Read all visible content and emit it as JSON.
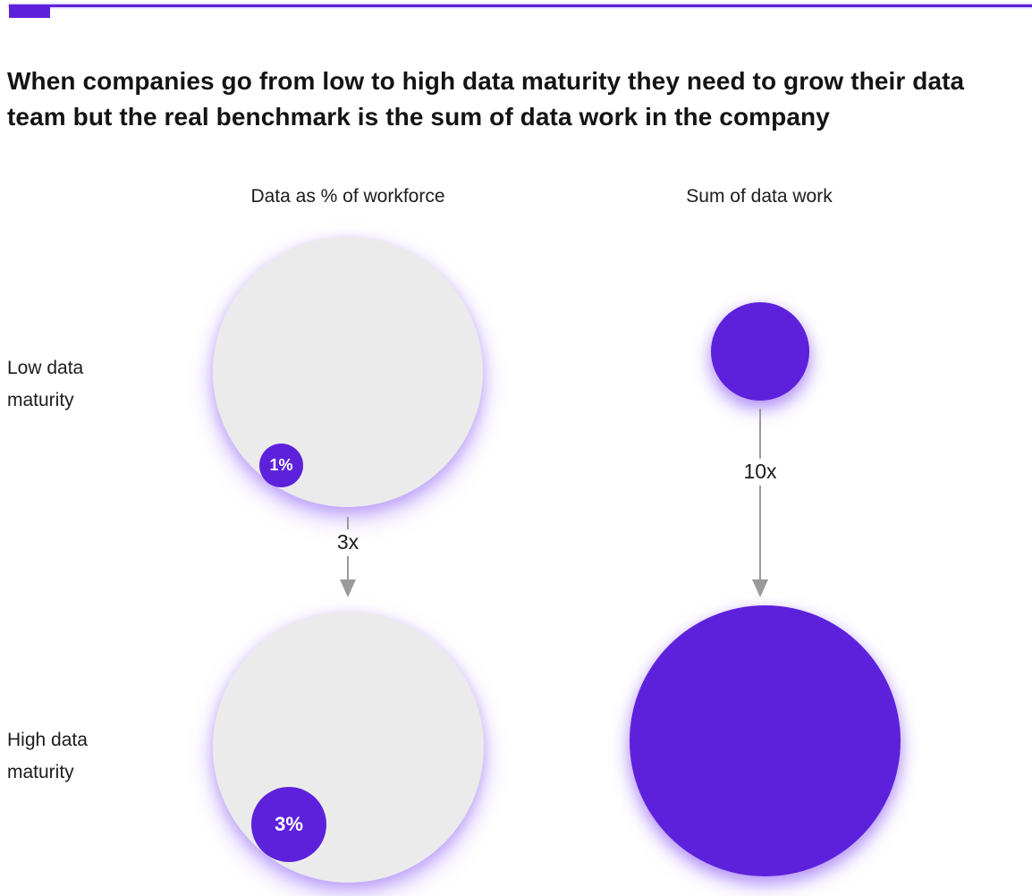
{
  "slide": {
    "title": "When companies go from low to high data maturity they need to grow their data team but the real benchmark is the sum of data work in the company",
    "accent_color": "#5d21db",
    "gray_circle_color": "#ebebeb",
    "glow_color": "rgba(151,103,247,0.45)",
    "arrow_color": "#9a9a9a",
    "background": "#ffffff"
  },
  "columns": [
    {
      "header": "Data as % of workforce"
    },
    {
      "header": "Sum of data work"
    }
  ],
  "rows": [
    {
      "label": "Low data maturity"
    },
    {
      "label": "High data maturity"
    }
  ],
  "workforce": {
    "low_share_label": "1%",
    "high_share_label": "3%",
    "growth_label": "3x"
  },
  "datawork": {
    "growth_label": "10x"
  },
  "chart_data": {
    "type": "bubble",
    "title": "When companies go from low to high data maturity they need to grow their data team but the real benchmark is the sum of data work in the company",
    "columns": [
      "Data as % of workforce",
      "Sum of data work"
    ],
    "rows": [
      "Low data maturity",
      "High data maturity"
    ],
    "series": [
      {
        "name": "Data as % of workforce",
        "points": [
          {
            "row": "Low data maturity",
            "data_share_pct": 1,
            "label": "1%",
            "outer_bubble": "total workforce"
          },
          {
            "row": "High data maturity",
            "data_share_pct": 3,
            "label": "3%",
            "outer_bubble": "total workforce"
          }
        ],
        "growth_multiplier_label": "3x",
        "growth_multiplier": 3
      },
      {
        "name": "Sum of data work",
        "points": [
          {
            "row": "Low data maturity",
            "relative_size": 1
          },
          {
            "row": "High data maturity",
            "relative_size": 10
          }
        ],
        "growth_multiplier_label": "10x",
        "growth_multiplier": 10
      }
    ],
    "legend_position": "none",
    "grid": false
  }
}
